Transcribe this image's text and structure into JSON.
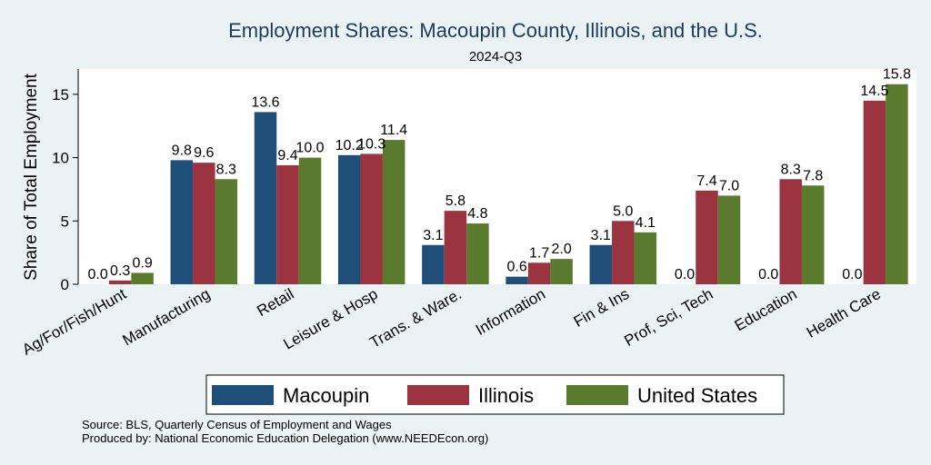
{
  "chart_data": {
    "type": "bar",
    "title": "Employment Shares: Macoupin County, Illinois, and the U.S.",
    "subtitle": "2024-Q3",
    "ylabel": "Share of Total Employment",
    "ylim": [
      0,
      17
    ],
    "yticks": [
      0,
      5,
      10,
      15
    ],
    "grid": false,
    "legend_position": "bottom",
    "categories": [
      "Ag/For/Fish/Hunt",
      "Manufacturing",
      "Retail",
      "Leisure & Hosp",
      "Trans. & Ware.",
      "Information",
      "Fin & Ins",
      "Prof, Sci, Tech",
      "Education",
      "Health Care"
    ],
    "series": [
      {
        "name": "Macoupin",
        "color": "#1f4e79",
        "values": [
          0.0,
          9.8,
          13.6,
          10.2,
          3.1,
          0.6,
          3.1,
          0.0,
          0.0,
          0.0
        ],
        "labels": [
          "0.0",
          "9.8",
          "13.6",
          "10.2",
          "3.1",
          "0.6",
          "3.1",
          "0.0",
          "0.0",
          "0.0"
        ]
      },
      {
        "name": "Illinois",
        "color": "#9b3340",
        "values": [
          0.3,
          9.6,
          9.4,
          10.3,
          5.8,
          1.7,
          5.0,
          7.4,
          8.3,
          14.5
        ],
        "labels": [
          "0.3",
          "9.6",
          "9.4",
          "10.3",
          "5.8",
          "1.7",
          "5.0",
          "7.4",
          "8.3",
          "14.5"
        ]
      },
      {
        "name": "United States",
        "color": "#5a7a2e",
        "values": [
          0.9,
          8.3,
          10.0,
          11.4,
          4.8,
          2.0,
          4.1,
          7.0,
          7.8,
          15.8
        ],
        "labels": [
          "0.9",
          "8.3",
          "10.0",
          "11.4",
          "4.8",
          "2.0",
          "4.1",
          "7.0",
          "7.8",
          "15.8"
        ]
      }
    ],
    "source_lines": [
      "Source: BLS, Quarterly Census of Employment and Wages",
      "Produced by: National Economic Education Delegation (www.NEEDEcon.org)"
    ]
  }
}
